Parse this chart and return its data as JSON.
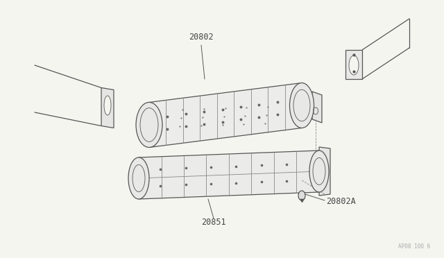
{
  "background_color": "#f5f5f0",
  "line_color": "#555555",
  "thin_line": "#777777",
  "label_color": "#444444",
  "watermark_color": "#aaaaaa",
  "figsize": [
    6.4,
    3.72
  ],
  "dpi": 100,
  "watermark": "AP08 100 6"
}
